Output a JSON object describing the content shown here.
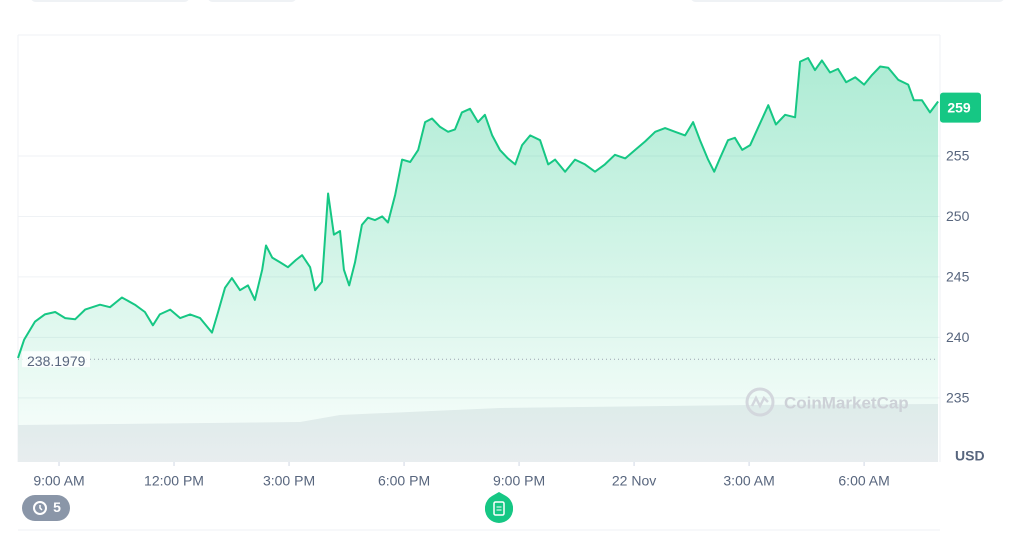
{
  "chart_data": {
    "type": "line",
    "x": [
      -1.07,
      -0.91,
      -0.63,
      -0.37,
      -0.1,
      0.16,
      0.42,
      0.68,
      1.07,
      1.33,
      1.64,
      1.98,
      2.24,
      2.45,
      2.63,
      2.9,
      3.16,
      3.42,
      3.68,
      3.99,
      4.15,
      4.33,
      4.51,
      4.72,
      4.93,
      5.11,
      5.3,
      5.4,
      5.56,
      5.77,
      5.97,
      6.18,
      6.34,
      6.55,
      6.68,
      6.86,
      7.02,
      7.17,
      7.33,
      7.43,
      7.57,
      7.72,
      7.9,
      8.06,
      8.24,
      8.43,
      8.58,
      8.77,
      8.95,
      9.16,
      9.37,
      9.55,
      9.73,
      9.94,
      10.15,
      10.33,
      10.51,
      10.72,
      10.93,
      11.11,
      11.3,
      11.5,
      11.71,
      11.9,
      12.08,
      12.29,
      12.55,
      12.76,
      12.94,
      13.2,
      13.46,
      13.72,
      13.98,
      14.24,
      14.5,
      14.77,
      15.03,
      15.29,
      15.55,
      15.81,
      16.07,
      16.33,
      16.54,
      16.72,
      16.93,
      17.09,
      17.24,
      17.45,
      17.63,
      17.82,
      18.03,
      18.23,
      18.5,
      18.7,
      18.94,
      19.2,
      19.33,
      19.54,
      19.72,
      19.9,
      20.11,
      20.32,
      20.53,
      20.77,
      21,
      21.21,
      21.42,
      21.63,
      21.89,
      22.15,
      22.3,
      22.51,
      22.72,
      22.93
    ],
    "values": [
      238.3,
      239.8,
      241.3,
      241.9,
      242.1,
      241.6,
      241.5,
      242.3,
      242.7,
      242.5,
      243.3,
      242.7,
      242.1,
      241.0,
      241.9,
      242.3,
      241.6,
      241.9,
      241.6,
      240.4,
      242.1,
      244.1,
      244.9,
      243.9,
      244.3,
      243.1,
      245.6,
      247.6,
      246.6,
      246.2,
      245.8,
      246.4,
      246.8,
      245.8,
      243.9,
      244.6,
      251.9,
      248.5,
      248.8,
      245.6,
      244.3,
      246.2,
      249.3,
      249.9,
      249.7,
      250.0,
      249.5,
      251.8,
      254.7,
      254.5,
      255.5,
      257.8,
      258.1,
      257.4,
      257.0,
      257.2,
      258.6,
      258.9,
      257.8,
      258.4,
      256.7,
      255.5,
      254.8,
      254.3,
      255.9,
      256.7,
      256.3,
      254.3,
      254.7,
      253.7,
      254.7,
      254.3,
      253.7,
      254.3,
      255.1,
      254.8,
      255.5,
      256.2,
      257.0,
      257.3,
      257.0,
      256.7,
      257.8,
      256.3,
      254.7,
      253.7,
      254.8,
      256.3,
      256.5,
      255.5,
      255.9,
      257.3,
      259.2,
      257.6,
      258.4,
      258.2,
      262.8,
      263.1,
      262.1,
      262.9,
      261.9,
      262.2,
      261.1,
      261.5,
      260.9,
      261.7,
      262.4,
      262.3,
      261.3,
      260.9,
      259.6,
      259.6,
      258.6,
      259.5
    ],
    "color": "#16c784",
    "xlim": [
      -1.07,
      22.98
    ],
    "xticks": [
      {
        "value": 0,
        "label": "9:00 AM"
      },
      {
        "value": 3,
        "label": "12:00 PM"
      },
      {
        "value": 6,
        "label": "3:00 PM"
      },
      {
        "value": 9,
        "label": "6:00 PM"
      },
      {
        "value": 12,
        "label": "9:00 PM"
      },
      {
        "value": 15,
        "label": "22 Nov"
      },
      {
        "value": 18,
        "label": "3:00 AM"
      },
      {
        "value": 21,
        "label": "6:00 AM"
      }
    ],
    "ylim": [
      229.7,
      265
    ],
    "yticks": [
      235,
      240,
      245,
      250,
      255
    ],
    "grid": true,
    "start_price": 238.1979,
    "current_price": 259,
    "unit": "USD",
    "watermark": "CoinMarketCap"
  },
  "ui": {
    "history_count": "5"
  }
}
